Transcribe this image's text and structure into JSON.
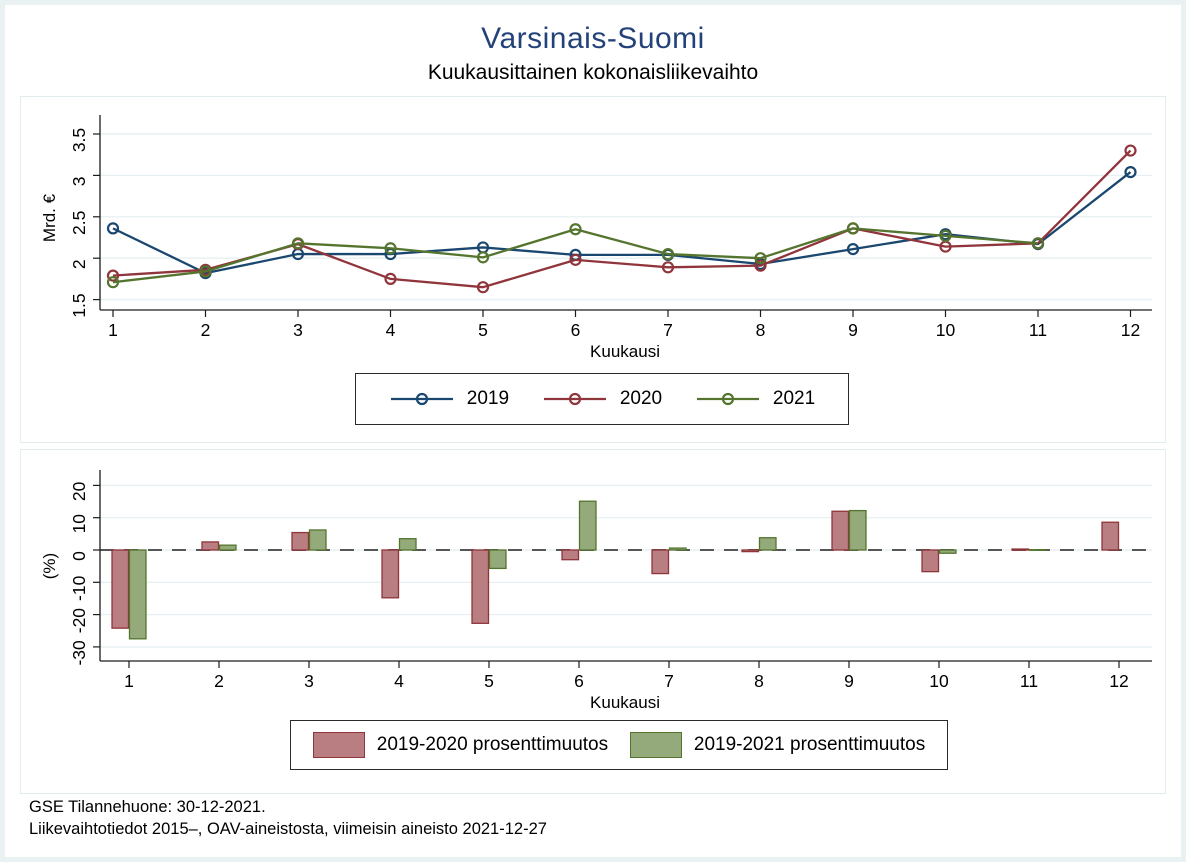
{
  "page": {
    "title": "Varsinais-Suomi",
    "subtitle": "Kuukausittainen kokonaisliikevaihto",
    "footer_line1": "GSE Tilannehuone: 30-12-2021.",
    "footer_line2": "Liikevaihtotiedot 2015–, OAV-aineistosta, viimeisin aineisto 2021-12-27"
  },
  "colors": {
    "title_text": "#24427a",
    "outer_frame": "#e9f1f2",
    "panel_border": "#e3edef",
    "gridline": "#e7f0f2",
    "axis_line": "#1c1c1c",
    "zero_dash_line": "#565656",
    "series_2019": "#1a476f",
    "series_2020": "#90353b",
    "series_2021": "#55752f",
    "bar_fill_2020": "#b97e81",
    "bar_fill_2021": "#94aa7a"
  },
  "chart_data": [
    {
      "type": "line",
      "title": "",
      "xlabel": "Kuukausi",
      "ylabel": "Mrd. €",
      "x": [
        1,
        2,
        3,
        4,
        5,
        6,
        7,
        8,
        9,
        10,
        11,
        12
      ],
      "xtick_labels": [
        "1",
        "2",
        "3",
        "4",
        "5",
        "6",
        "7",
        "8",
        "9",
        "10",
        "11",
        "12"
      ],
      "yticks": [
        1.5,
        2,
        2.5,
        3,
        3.5
      ],
      "ytick_labels": [
        "1.5",
        "2",
        "2.5",
        "3",
        "3.5"
      ],
      "ylim": [
        1.38,
        3.72
      ],
      "grid": true,
      "legend_position": "below",
      "marker": "hollow-circle",
      "series": [
        {
          "name": "2019",
          "color": "#1a476f",
          "values": [
            2.36,
            1.82,
            2.05,
            2.05,
            2.13,
            2.04,
            2.04,
            1.93,
            2.11,
            2.29,
            2.17,
            3.04
          ]
        },
        {
          "name": "2020",
          "color": "#90353b",
          "values": [
            1.79,
            1.86,
            2.17,
            1.75,
            1.65,
            1.98,
            1.89,
            1.91,
            2.36,
            2.14,
            2.18,
            3.3
          ]
        },
        {
          "name": "2021",
          "color": "#55752f",
          "values": [
            1.71,
            1.84,
            2.18,
            2.12,
            2.01,
            2.35,
            2.05,
            2.0,
            2.36,
            2.27,
            2.18,
            null
          ]
        }
      ]
    },
    {
      "type": "bar",
      "title": "",
      "xlabel": "Kuukausi",
      "ylabel": "(%)",
      "categories": [
        1,
        2,
        3,
        4,
        5,
        6,
        7,
        8,
        9,
        10,
        11,
        12
      ],
      "xtick_labels": [
        "1",
        "2",
        "3",
        "4",
        "5",
        "6",
        "7",
        "8",
        "9",
        "10",
        "11",
        "12"
      ],
      "yticks": [
        -30,
        -20,
        -10,
        0,
        10,
        20
      ],
      "ytick_labels": [
        "-30",
        "-20",
        "-10",
        "0",
        "10",
        "20"
      ],
      "ylim": [
        -34,
        24.5
      ],
      "grid": true,
      "zero_line": "dashed",
      "legend_position": "below",
      "series": [
        {
          "name": "2019-2020 prosenttimuutos",
          "fill": "#b97e81",
          "border": "#90353b",
          "values": [
            -24.2,
            2.5,
            5.4,
            -14.8,
            -22.7,
            -3.0,
            -7.3,
            -0.5,
            12.0,
            -6.7,
            0.3,
            8.6
          ]
        },
        {
          "name": "2019-2021 prosenttimuutos",
          "fill": "#94aa7a",
          "border": "#55752f",
          "values": [
            -27.5,
            1.5,
            6.2,
            3.5,
            -5.7,
            15.1,
            0.6,
            3.8,
            12.2,
            -1.0,
            0.1,
            null
          ]
        }
      ]
    }
  ]
}
